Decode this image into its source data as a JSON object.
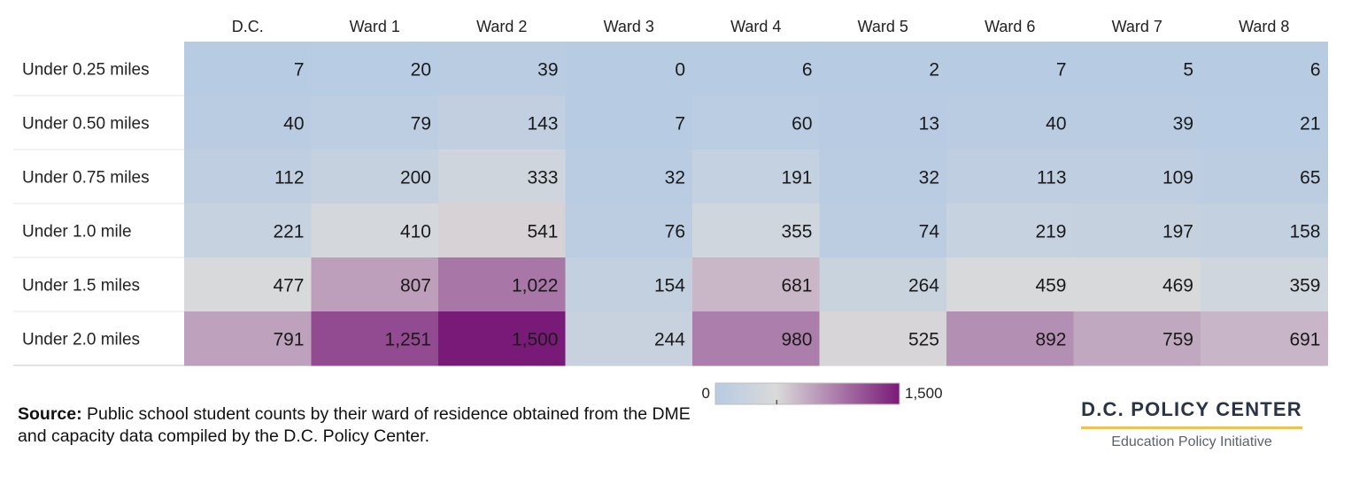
{
  "chart_data": {
    "type": "heatmap",
    "columns": [
      "D.C.",
      "Ward 1",
      "Ward 2",
      "Ward 3",
      "Ward 4",
      "Ward 5",
      "Ward 6",
      "Ward 7",
      "Ward 8"
    ],
    "rows": [
      "Under 0.25 miles",
      "Under 0.50 miles",
      "Under 0.75 miles",
      "Under 1.0 mile",
      "Under 1.5 miles",
      "Under 2.0 miles"
    ],
    "values": [
      [
        7,
        20,
        39,
        0,
        6,
        2,
        7,
        5,
        6
      ],
      [
        40,
        79,
        143,
        7,
        60,
        13,
        40,
        39,
        21
      ],
      [
        112,
        200,
        333,
        32,
        191,
        32,
        113,
        109,
        65
      ],
      [
        221,
        410,
        541,
        76,
        355,
        74,
        219,
        197,
        158
      ],
      [
        477,
        807,
        1022,
        154,
        681,
        264,
        459,
        469,
        359
      ],
      [
        791,
        1251,
        1500,
        244,
        980,
        525,
        892,
        759,
        691
      ]
    ],
    "labels": [
      [
        "7",
        "20",
        "39",
        "0",
        "6",
        "2",
        "7",
        "5",
        "6"
      ],
      [
        "40",
        "79",
        "143",
        "7",
        "60",
        "13",
        "40",
        "39",
        "21"
      ],
      [
        "112",
        "200",
        "333",
        "32",
        "191",
        "32",
        "113",
        "109",
        "65"
      ],
      [
        "221",
        "410",
        "541",
        "76",
        "355",
        "74",
        "219",
        "197",
        "158"
      ],
      [
        "477",
        "807",
        "1,022",
        "154",
        "681",
        "264",
        "459",
        "469",
        "359"
      ],
      [
        "791",
        "1,251",
        "1,500",
        "244",
        "980",
        "525",
        "892",
        "759",
        "691"
      ]
    ],
    "color_scale": {
      "min": 0,
      "max": 1500,
      "min_label": "0",
      "max_label": "1,500",
      "low_color": "#b7cbe3",
      "mid_color": "#dadada",
      "high_color": "#7a1a78",
      "midpoint": 500
    }
  },
  "source": {
    "label": "Source:",
    "text": " Public school student counts by their ward of residence obtained from the DME  and capacity data compiled by the D.C. Policy Center."
  },
  "brand": {
    "name": "D.C. POLICY CENTER",
    "subtitle": "Education Policy Initiative",
    "accent_color": "#f0c053"
  }
}
